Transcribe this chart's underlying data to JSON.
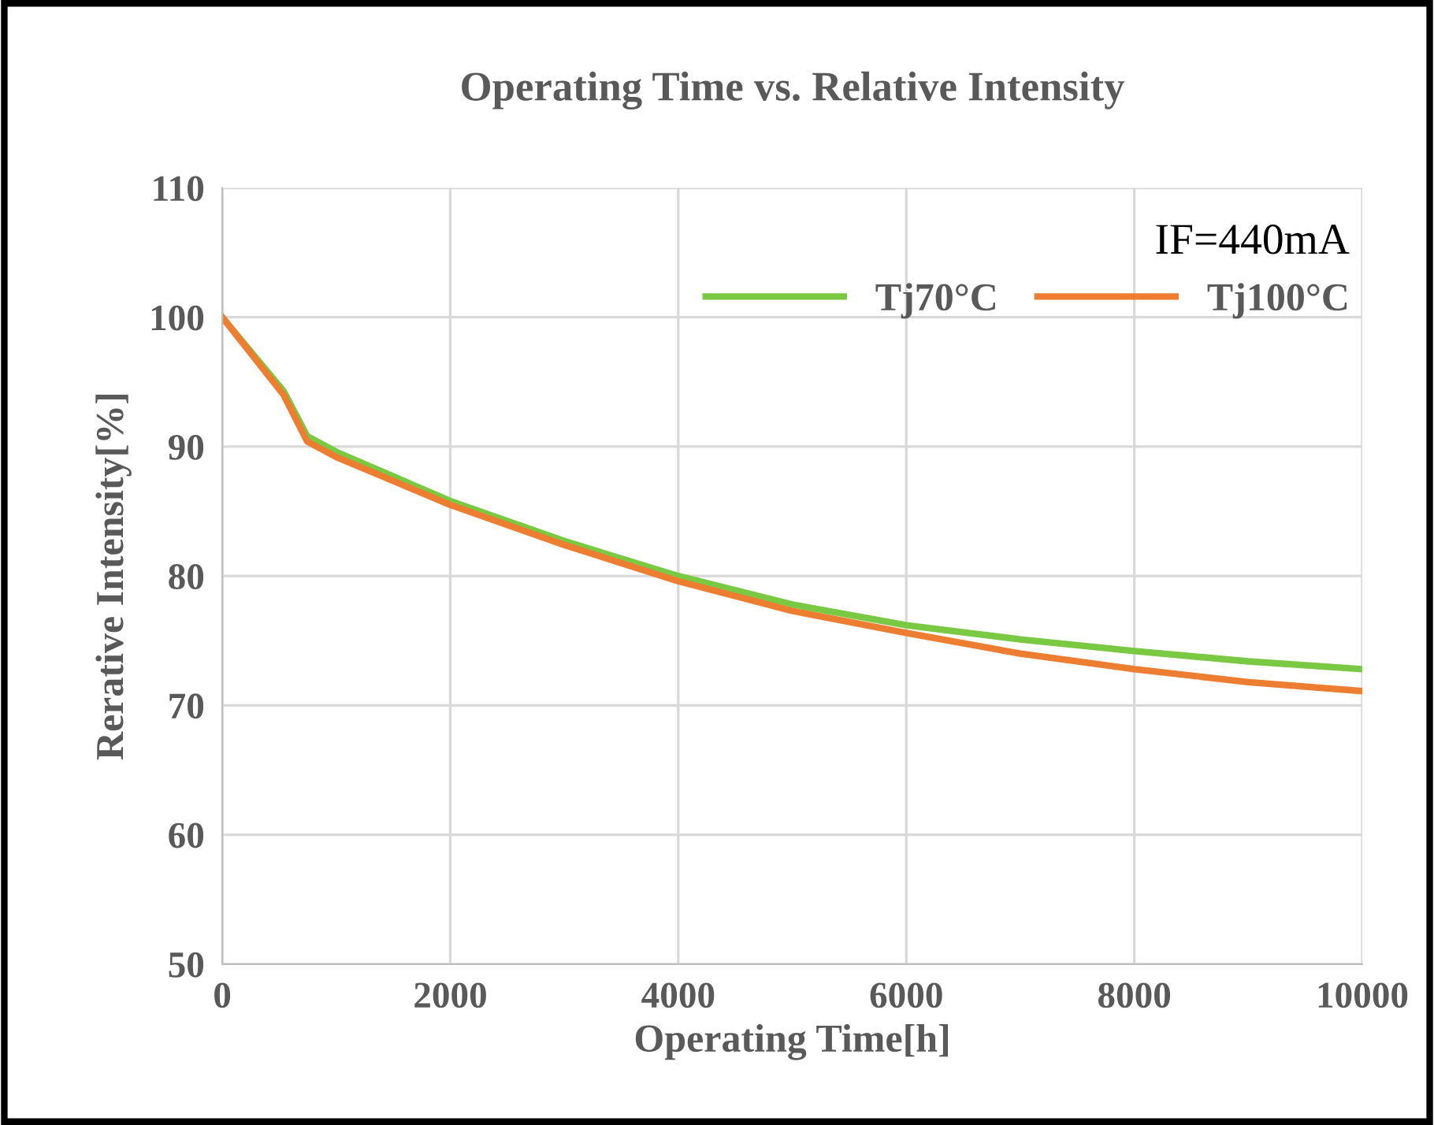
{
  "chart_data": {
    "type": "line",
    "title": "Operating Time vs. Relative Intensity",
    "xlabel": "Operating Time[h]",
    "ylabel": "Rerative Intensity[%]",
    "legend_title": "IF=440mA",
    "series": [
      {
        "name": "Tj70°C",
        "color": "#7ac943",
        "x": [
          0,
          538,
          745,
          1000,
          2000,
          3000,
          4000,
          5000,
          6000,
          7000,
          8000,
          9000,
          10000
        ],
        "values": [
          100,
          94.3,
          90.8,
          89.6,
          85.8,
          82.7,
          80.0,
          77.8,
          76.2,
          75.1,
          74.2,
          73.4,
          72.8
        ]
      },
      {
        "name": "Tj100°C",
        "color": "#ed7d31",
        "x": [
          0,
          538,
          745,
          1000,
          2000,
          3000,
          4000,
          5000,
          6000,
          7000,
          8000,
          9000,
          10000
        ],
        "values": [
          100,
          94.0,
          90.4,
          89.2,
          85.5,
          82.4,
          79.6,
          77.3,
          75.6,
          74.0,
          72.8,
          71.8,
          71.1
        ]
      }
    ],
    "xlim": [
      0,
      10000
    ],
    "xticks": [
      0,
      2000,
      4000,
      6000,
      8000,
      10000
    ],
    "ylim": [
      50,
      110
    ],
    "yticks": [
      50,
      60,
      70,
      80,
      90,
      100,
      110
    ],
    "grid": true,
    "legend": "top right",
    "marker": "none",
    "line_style": "solid"
  }
}
